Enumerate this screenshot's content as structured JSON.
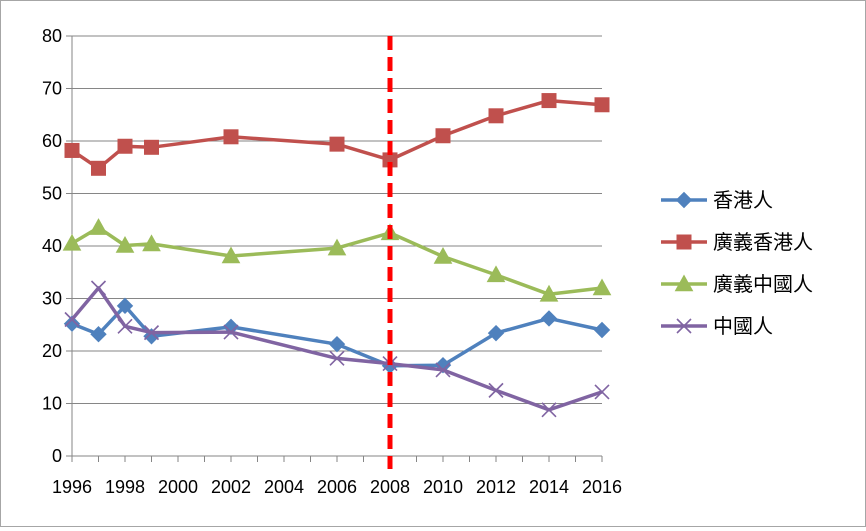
{
  "chart_data": {
    "type": "line",
    "title": "",
    "xlabel": "",
    "ylabel": "",
    "x": [
      1996,
      1997,
      1998,
      1999,
      2002,
      2006,
      2008,
      2010,
      2012,
      2014,
      2016
    ],
    "xlim": [
      1996,
      2016
    ],
    "ylim": [
      0,
      80
    ],
    "x_ticks": [
      "1996",
      "1998",
      "2000",
      "2002",
      "2004",
      "2006",
      "2008",
      "2010",
      "2012",
      "2014",
      "2016"
    ],
    "y_ticks": [
      "0",
      "10",
      "20",
      "30",
      "40",
      "50",
      "60",
      "70",
      "80"
    ],
    "grid": "horizontal",
    "legend_position": "right",
    "reference_line": {
      "x": 2008,
      "color": "#ff0000",
      "style": "dashed"
    },
    "series": [
      {
        "name": "香港人",
        "color": "#4f81bd",
        "marker": "diamond",
        "values": [
          25.2,
          23.2,
          28.6,
          22.8,
          24.6,
          21.3,
          17.2,
          17.3,
          23.4,
          26.2,
          24.0
        ]
      },
      {
        "name": "廣義香港人",
        "color": "#c0504d",
        "marker": "square",
        "values": [
          58.2,
          54.8,
          59.0,
          58.8,
          60.8,
          59.4,
          56.4,
          61.0,
          64.8,
          67.7,
          66.9
        ]
      },
      {
        "name": "廣義中國人",
        "color": "#9bbb59",
        "marker": "triangle",
        "values": [
          40.5,
          43.5,
          40.1,
          40.4,
          38.1,
          39.6,
          42.5,
          38.0,
          34.5,
          30.8,
          32.0
        ]
      },
      {
        "name": "中國人",
        "color": "#8064a2",
        "marker": "x",
        "values": [
          26.0,
          32.0,
          24.7,
          23.5,
          23.6,
          18.6,
          17.6,
          16.4,
          12.5,
          8.8,
          12.2
        ]
      }
    ]
  }
}
